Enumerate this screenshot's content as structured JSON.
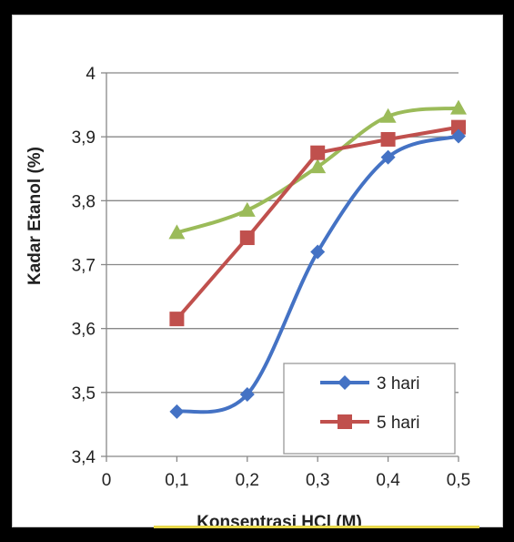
{
  "chart_data": {
    "type": "line",
    "title": "",
    "xlabel": "Konsentrasi HCl (M)",
    "ylabel": "Kadar Etanol (%)",
    "xlim": [
      0,
      0.5
    ],
    "ylim": [
      3.4,
      4.0
    ],
    "x_ticks": [
      "0",
      "0,1",
      "0,2",
      "0,3",
      "0,4",
      "0,5"
    ],
    "y_ticks": [
      "3,4",
      "3,5",
      "3,6",
      "3,7",
      "3,8",
      "3,9",
      "4"
    ],
    "grid": "horizontal",
    "legend_position": "bottom-right",
    "x": [
      0.1,
      0.2,
      0.3,
      0.4,
      0.5
    ],
    "series": [
      {
        "name": "3 hari",
        "values": [
          3.47,
          3.497,
          3.72,
          3.868,
          3.901
        ],
        "color": "#4472C4",
        "marker": "diamond",
        "smooth": true,
        "in_legend": true
      },
      {
        "name": "5 hari",
        "values": [
          3.615,
          3.742,
          3.875,
          3.896,
          3.915
        ],
        "color": "#C0504D",
        "marker": "square",
        "smooth": false,
        "in_legend": true
      },
      {
        "name": "",
        "values": [
          3.75,
          3.785,
          3.853,
          3.932,
          3.945
        ],
        "color": "#9BBB59",
        "marker": "triangle",
        "smooth": true,
        "in_legend": false
      }
    ]
  },
  "colors": {
    "frame": "#000000",
    "panel": "#ffffff",
    "grid": "#888888",
    "axis": "#888888",
    "highlight_bar": "#e8d84a"
  }
}
